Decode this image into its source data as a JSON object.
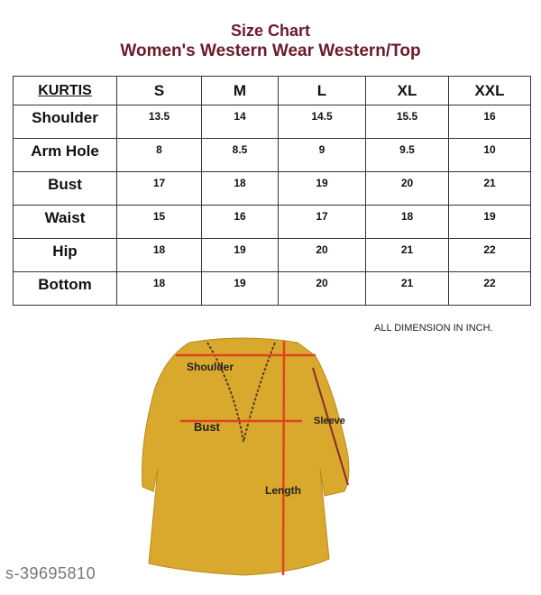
{
  "title": "Size Chart",
  "subtitle": "Women's Western Wear Western/Top",
  "table": {
    "headers": [
      "KURTIS",
      "S",
      "M",
      "L",
      "XL",
      "XXL"
    ],
    "rows": [
      {
        "label": "Shoulder",
        "values": [
          "13.5",
          "14",
          "14.5",
          "15.5",
          "16"
        ]
      },
      {
        "label": "Arm Hole",
        "values": [
          "8",
          "8.5",
          "9",
          "9.5",
          "10"
        ]
      },
      {
        "label": "Bust",
        "values": [
          "17",
          "18",
          "19",
          "20",
          "21"
        ]
      },
      {
        "label": "Waist",
        "values": [
          "15",
          "16",
          "17",
          "18",
          "19"
        ]
      },
      {
        "label": "Hip",
        "values": [
          "18",
          "19",
          "20",
          "21",
          "22"
        ]
      },
      {
        "label": "Bottom",
        "values": [
          "18",
          "19",
          "20",
          "21",
          "22"
        ]
      }
    ]
  },
  "note": "ALL DIMENSION IN INCH.",
  "diagram": {
    "labels": {
      "shoulder": "Shoulder",
      "bust": "Bust",
      "sleeve": "Sleeve",
      "length": "Length"
    },
    "colors": {
      "garment": "#d9a92e",
      "measure_line": "#e0441f"
    }
  },
  "watermark": "s-39695810"
}
